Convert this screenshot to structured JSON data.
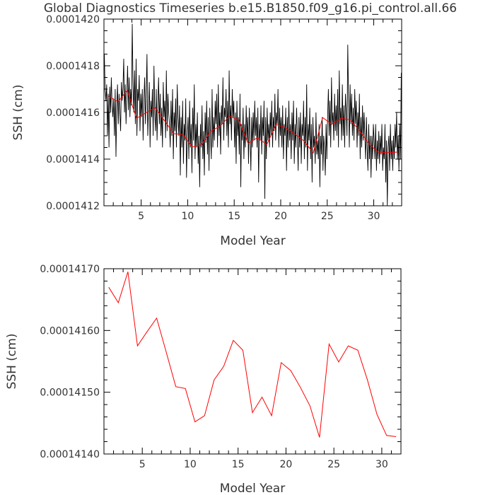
{
  "title": "Global Diagnostics Timeseries b.e15.B1850.f09_g16.pi_control.all.66",
  "colors": {
    "monthly": "#000000",
    "annual": "#ff0000",
    "text": "#333333"
  },
  "chart_data": [
    {
      "type": "line",
      "title": "Global Diagnostics Timeseries b.e15.B1850.f09_g16.pi_control.all.66",
      "xlabel": "Model Year",
      "ylabel": "SSH (cm)",
      "xlim": [
        1,
        33
      ],
      "ylim": [
        0.0001412,
        0.000142
      ],
      "xticks": [
        5,
        10,
        15,
        20,
        25,
        30
      ],
      "xtick_labels": [
        "5",
        "10",
        "15",
        "20",
        "25",
        "30"
      ],
      "yticks": [
        0.0001412,
        0.0001414,
        0.0001416,
        0.0001418,
        0.000142
      ],
      "ytick_labels": [
        "0.0001412",
        "0.0001414",
        "0.0001416",
        "0.0001418",
        "0.0001420"
      ],
      "series": [
        {
          "color": "#000000",
          "x_start": 1.0417,
          "x_step": 0.0833333,
          "values": [
            0.00014185,
            0.0001417,
            0.00014165,
            0.00014172,
            0.0001415,
            0.00014168,
            0.00014145,
            0.00014171,
            0.0001416,
            0.00014175,
            0.00014163,
            0.00014158,
            0.00014166,
            0.0001415,
            0.0001417,
            0.00014141,
            0.00014162,
            0.00014172,
            0.00014155,
            0.00014168,
            0.0001416,
            0.00014152,
            0.00014173,
            0.00014165,
            0.0001417,
            0.00014183,
            0.0001416,
            0.00014172,
            0.00014155,
            0.00014168,
            0.0001418,
            0.00014161,
            0.00014175,
            0.00014158,
            0.0001417,
            0.00014163,
            0.00014198,
            0.00014172,
            0.0001416,
            0.00014178,
            0.00014155,
            0.00014183,
            0.0001415,
            0.0001417,
            0.00014165,
            0.00014176,
            0.00014152,
            0.00014168,
            0.00014158,
            0.0001417,
            0.00014148,
            0.00014165,
            0.00014175,
            0.00014155,
            0.00014168,
            0.00014185,
            0.0001415,
            0.00014162,
            0.00014173,
            0.00014145,
            0.00014165,
            0.00014158,
            0.0001417,
            0.0001415,
            0.0001418,
            0.0001416,
            0.00014152,
            0.0001417,
            0.00014148,
            0.00014163,
            0.00014175,
            0.00014155,
            0.00014168,
            0.0001415,
            0.00014162,
            0.00014145,
            0.00014173,
            0.00014158,
            0.00014165,
            0.00014149,
            0.00014178,
            0.00014152,
            0.00014168,
            0.0001416,
            0.00014155,
            0.00014145,
            0.00014165,
            0.0001415,
            0.0001417,
            0.0001414,
            0.0001416,
            0.00014152,
            0.00014166,
            0.00014145,
            0.00014172,
            0.00014158,
            0.0001415,
            0.00014163,
            0.00014133,
            0.00014158,
            0.00014145,
            0.00014165,
            0.00014138,
            0.00014155,
            0.00014148,
            0.00014166,
            0.00014132,
            0.0001415,
            0.00014158,
            0.0001414,
            0.00014165,
            0.00014145,
            0.00014155,
            0.00014134,
            0.00014162,
            0.00014148,
            0.00014172,
            0.0001414,
            0.00014155,
            0.00014145,
            0.0001416,
            0.00014138,
            0.0001415,
            0.00014128,
            0.00014155,
            0.00014145,
            0.00014163,
            0.0001414,
            0.00014152,
            0.00014133,
            0.0001416,
            0.00014147,
            0.00014165,
            0.00014142,
            0.00014158,
            0.00014135,
            0.00014162,
            0.0001415,
            0.0001414,
            0.0001417,
            0.00014145,
            0.00014158,
            0.00014148,
            0.00014165,
            0.00014155,
            0.00014168,
            0.00014145,
            0.00014172,
            0.0001415,
            0.0001416,
            0.00014142,
            0.00014163,
            0.00014155,
            0.00014175,
            0.00014148,
            0.00014162,
            0.00014158,
            0.0001417,
            0.0001415,
            0.00014165,
            0.00014145,
            0.00014178,
            0.00014155,
            0.00014163,
            0.00014148,
            0.0001417,
            0.00014158,
            0.00014165,
            0.00014145,
            0.0001416,
            0.00014138,
            0.00014165,
            0.0001415,
            0.00014158,
            0.00014142,
            0.00014168,
            0.00014128,
            0.00014155,
            0.00014148,
            0.00014162,
            0.0001414,
            0.00014155,
            0.00014145,
            0.00014163,
            0.00014148,
            0.00014158,
            0.00014138,
            0.00014162,
            0.0001415,
            0.00014135,
            0.00014158,
            0.00014145,
            0.0001416,
            0.00014148,
            0.00014165,
            0.0001415,
            0.00014158,
            0.00014145,
            0.00014162,
            0.0001413,
            0.00014155,
            0.00014148,
            0.00014163,
            0.00014142,
            0.00014158,
            0.0001415,
            0.00014165,
            0.00014123,
            0.00014158,
            0.0001414,
            0.00014162,
            0.00014148,
            0.00014155,
            0.00014145,
            0.0001416,
            0.0001415,
            0.00014165,
            0.00014145,
            0.00014158,
            0.00014152,
            0.00014168,
            0.00014148,
            0.0001416,
            0.00014155,
            0.0001417,
            0.00014145,
            0.00014162,
            0.0001415,
            0.00014158,
            0.00014145,
            0.00014163,
            0.0001414,
            0.00014155,
            0.0001415,
            0.00014162,
            0.00014135,
            0.00014158,
            0.00014145,
            0.00014165,
            0.00014148,
            0.00014155,
            0.0001414,
            0.0001416,
            0.00014148,
            0.00014165,
            0.00014138,
            0.00014155,
            0.00014145,
            0.00014162,
            0.0001415,
            0.00014135,
            0.00014158,
            0.00014145,
            0.0001416,
            0.00014138,
            0.00014155,
            0.0001415,
            0.00014165,
            0.0001414,
            0.00014158,
            0.00014145,
            0.00014172,
            0.00014135,
            0.00014155,
            0.00014148,
            0.00014162,
            0.0001414,
            0.00014155,
            0.0001413,
            0.00014158,
            0.00014145,
            0.0001415,
            0.00014138,
            0.0001416,
            0.00014142,
            0.00014148,
            0.0001414,
            0.00014155,
            0.00014128,
            0.0001415,
            0.00014142,
            0.00014158,
            0.00014135,
            0.0001415,
            0.00014145,
            0.00014133,
            0.00014155,
            0.0001414,
            0.00014158,
            0.0001417,
            0.0001415,
            0.00014165,
            0.00014145,
            0.00014175,
            0.00014155,
            0.0001416,
            0.00014148,
            0.00014168,
            0.00014152,
            0.00014163,
            0.0001415,
            0.0001417,
            0.00014145,
            0.00014178,
            0.00014155,
            0.00014162,
            0.00014148,
            0.00014172,
            0.0001415,
            0.00014163,
            0.00014145,
            0.00014168,
            0.0001416,
            0.0001415,
            0.00014189,
            0.00014165,
            0.00014145,
            0.00014172,
            0.00014155,
            0.00014168,
            0.0001415,
            0.00014162,
            0.00014148,
            0.0001417,
            0.00014155,
            0.00014165,
            0.00014145,
            0.0001416,
            0.0001415,
            0.00014168,
            0.0001414,
            0.00014158,
            0.00014145,
            0.00014163,
            0.00014148,
            0.0001416,
            0.0001415,
            0.0001414,
            0.00014158,
            0.00014145,
            0.00014135,
            0.00014155,
            0.0001414,
            0.0001415,
            0.00014132,
            0.0001415,
            0.0001414,
            0.00014155,
            0.00014148,
            0.0001414,
            0.00014155,
            0.00014135,
            0.00014148,
            0.0001414,
            0.00014152,
            0.00014138,
            0.0001415,
            0.00014142,
            0.00014155,
            0.00014135,
            0.00014145,
            0.0001414,
            0.00014155,
            0.0001413,
            0.00014148,
            0.0001412,
            0.00014145,
            0.0001415,
            0.00014135,
            0.00014155,
            0.0001414,
            0.00014148,
            0.00014135,
            0.0001415,
            0.0001414,
            0.00014155,
            0.00014145,
            0.0001416,
            0.0001414,
            0.0001415,
            0.00014135,
            0.00014155,
            0.0001414,
            0.00014177
          ]
        },
        {
          "color": "#ff0000",
          "x": [
            1.5,
            2.5,
            3.5,
            4.5,
            5.5,
            6.5,
            7.5,
            8.5,
            9.5,
            10.5,
            11.5,
            12.5,
            13.5,
            14.5,
            15.5,
            16.5,
            17.5,
            18.5,
            19.5,
            20.5,
            21.5,
            22.5,
            23.5,
            24.5,
            25.5,
            26.5,
            27.5,
            28.5,
            29.5,
            30.5,
            31.5,
            32.5
          ],
          "values": [
            0.00014167,
            0.000141645,
            0.000141695,
            0.000141575,
            0.000141598,
            0.00014162,
            0.000141565,
            0.000141509,
            0.000141506,
            0.000141452,
            0.000141462,
            0.00014152,
            0.000141542,
            0.000141584,
            0.000141568,
            0.000141467,
            0.000141492,
            0.000141462,
            0.000141548,
            0.000141535,
            0.000141508,
            0.000141478,
            0.000141427,
            0.000141578,
            0.000141549,
            0.000141575,
            0.000141568,
            0.00014152,
            0.000141464,
            0.00014143,
            0.000141428,
            0.00014143
          ]
        }
      ]
    },
    {
      "type": "line",
      "xlabel": "Model Year",
      "ylabel": "SSH (cm)",
      "xlim": [
        1,
        32
      ],
      "ylim": [
        0.0001414,
        0.0001417
      ],
      "xticks": [
        5,
        10,
        15,
        20,
        25,
        30
      ],
      "xtick_labels": [
        "5",
        "10",
        "15",
        "20",
        "25",
        "30"
      ],
      "yticks": [
        0.0001414,
        0.0001415,
        0.0001416,
        0.0001417
      ],
      "ytick_labels": [
        "0.00014140",
        "0.00014150",
        "0.00014160",
        "0.00014170"
      ],
      "series": [
        {
          "color": "#ff0000",
          "x": [
            1.5,
            2.5,
            3.5,
            4.5,
            5.5,
            6.5,
            7.5,
            8.5,
            9.5,
            10.5,
            11.5,
            12.5,
            13.5,
            14.5,
            15.5,
            16.5,
            17.5,
            18.5,
            19.5,
            20.5,
            21.5,
            22.5,
            23.5,
            24.5,
            25.5,
            26.5,
            27.5,
            28.5,
            29.5,
            30.5,
            31.5
          ],
          "values": [
            0.00014167,
            0.000141645,
            0.000141695,
            0.000141575,
            0.000141598,
            0.00014162,
            0.000141565,
            0.000141509,
            0.000141506,
            0.000141452,
            0.000141462,
            0.00014152,
            0.000141542,
            0.000141584,
            0.000141568,
            0.000141467,
            0.000141492,
            0.000141462,
            0.000141548,
            0.000141535,
            0.000141508,
            0.000141478,
            0.000141427,
            0.000141578,
            0.000141549,
            0.000141575,
            0.000141568,
            0.00014152,
            0.000141464,
            0.00014143,
            0.000141428
          ]
        }
      ]
    }
  ]
}
